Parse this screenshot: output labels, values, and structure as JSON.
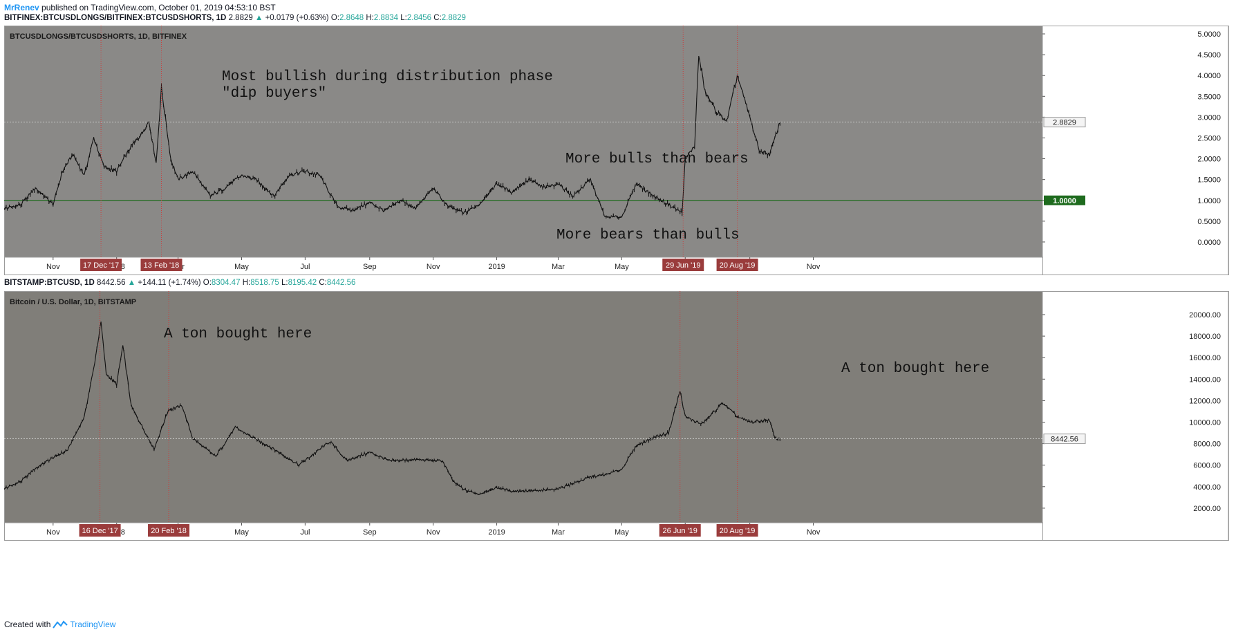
{
  "header": {
    "author": "MrRenev",
    "published_text": "published on TradingView.com, October 01, 2019 04:53:10 BST"
  },
  "footer": {
    "created_with": "Created with",
    "brand": "TradingView"
  },
  "colors": {
    "pane1_bg": "#8a8987",
    "pane2_bg": "#807e79",
    "line": "#000000",
    "marker": "#cf3a3a",
    "date_label_bg": "#9a3c3c",
    "hline": "#1e6b1e",
    "up": "#26a69a"
  },
  "panes": [
    {
      "legend": {
        "symbol": "BITFINEX:BTCUSDLONGS/BITFINEX:BTCUSDSHORTS, 1D",
        "last": "2.8829",
        "change": "+0.0179 (+0.63%)",
        "o": "2.8648",
        "h": "2.8834",
        "l": "2.8456",
        "c": "2.8829"
      },
      "pane_title": "BTCUSDLONGS/BTCUSDSHORTS, 1D, BITFINEX",
      "annotations": [
        "Most bullish during distribution phase\n\"dip buyers\"",
        "More bulls than bears",
        "More bears than bulls"
      ],
      "last_value_label": "2.8829",
      "hline_label": "1.0000",
      "markers": [
        {
          "date": "2017-12-17",
          "label": "17 Dec '17"
        },
        {
          "date": "2018-02-13",
          "label": "13 Feb '18"
        },
        {
          "date": "2019-06-29",
          "label": "29 Jun '19"
        },
        {
          "date": "2019-08-20",
          "label": "20 Aug '19"
        }
      ]
    },
    {
      "legend": {
        "symbol": "BITSTAMP:BTCUSD, 1D",
        "last": "8442.56",
        "change": "+144.11 (+1.74%)",
        "o": "8304.47",
        "h": "8518.75",
        "l": "8195.42",
        "c": "8442.56"
      },
      "pane_title": "Bitcoin / U.S. Dollar, 1D, BITSTAMP",
      "annotations": [
        "A ton bought here",
        "A ton bought here"
      ],
      "last_value_label": "8442.56",
      "markers": [
        {
          "date": "2017-12-16",
          "label": "16 Dec '17"
        },
        {
          "date": "2018-02-20",
          "label": "20 Feb '18"
        },
        {
          "date": "2019-06-26",
          "label": "26 Jun '19"
        },
        {
          "date": "2019-08-20",
          "label": "20 Aug '19"
        }
      ]
    }
  ],
  "chart_data": [
    {
      "type": "line",
      "title": "BTCUSDLONGS/BTCUSDSHORTS, 1D, BITFINEX",
      "x_ticks": [
        "Nov",
        "2018",
        "Mar",
        "May",
        "Jul",
        "Sep",
        "Nov",
        "2019",
        "Mar",
        "May",
        "Jul",
        "Sep",
        "Nov"
      ],
      "y_ticks": [
        "0.0000",
        "0.5000",
        "1.0000",
        "1.5000",
        "2.0000",
        "2.5000",
        "3.0000",
        "3.5000",
        "4.0000",
        "4.5000",
        "5.0000"
      ],
      "ylim": [
        -0.3,
        5.1
      ],
      "hline": 1.0,
      "grid": false,
      "series": [
        {
          "x": [
            "2017-09-15",
            "2017-10-01",
            "2017-10-15",
            "2017-11-01",
            "2017-11-10",
            "2017-11-20",
            "2017-12-01",
            "2017-12-10",
            "2017-12-20",
            "2018-01-01",
            "2018-01-08",
            "2018-01-15",
            "2018-01-25",
            "2018-02-01",
            "2018-02-08",
            "2018-02-13",
            "2018-02-22",
            "2018-03-01",
            "2018-03-15",
            "2018-04-01",
            "2018-04-15",
            "2018-05-01",
            "2018-05-15",
            "2018-06-01",
            "2018-06-15",
            "2018-07-01",
            "2018-07-15",
            "2018-08-01",
            "2018-08-15",
            "2018-09-01",
            "2018-09-15",
            "2018-10-01",
            "2018-10-15",
            "2018-11-01",
            "2018-11-15",
            "2018-12-01",
            "2018-12-15",
            "2019-01-01",
            "2019-01-15",
            "2019-02-01",
            "2019-02-15",
            "2019-03-01",
            "2019-03-15",
            "2019-04-01",
            "2019-04-15",
            "2019-05-01",
            "2019-05-15",
            "2019-06-01",
            "2019-06-15",
            "2019-06-28",
            "2019-07-01",
            "2019-07-10",
            "2019-07-14",
            "2019-07-20",
            "2019-08-01",
            "2019-08-10",
            "2019-08-20",
            "2019-09-01",
            "2019-09-10",
            "2019-09-20",
            "2019-09-30"
          ],
          "y": [
            0.8,
            0.9,
            1.3,
            0.9,
            1.7,
            2.1,
            1.6,
            2.5,
            1.8,
            1.7,
            2.0,
            2.3,
            2.6,
            2.9,
            1.9,
            3.7,
            2.0,
            1.5,
            1.7,
            1.1,
            1.3,
            1.6,
            1.5,
            1.1,
            1.6,
            1.7,
            1.6,
            0.85,
            0.75,
            0.95,
            0.75,
            1.0,
            0.8,
            1.3,
            0.85,
            0.7,
            0.9,
            1.4,
            1.2,
            1.5,
            1.3,
            1.4,
            1.1,
            1.5,
            0.6,
            0.6,
            1.4,
            1.1,
            0.9,
            0.7,
            2.0,
            2.3,
            4.5,
            3.6,
            3.1,
            2.9,
            4.0,
            3.0,
            2.2,
            2.1,
            2.88
          ]
        }
      ]
    },
    {
      "type": "line",
      "title": "Bitcoin / U.S. Dollar, 1D, BITSTAMP",
      "x_ticks": [
        "Nov",
        "2018",
        "Mar",
        "May",
        "Jul",
        "Sep",
        "Nov",
        "2019",
        "Mar",
        "May",
        "Jul",
        "Sep",
        "Nov"
      ],
      "y_ticks": [
        "2000.00",
        "4000.00",
        "6000.00",
        "8000.00",
        "10000.00",
        "12000.00",
        "14000.00",
        "16000.00",
        "18000.00",
        "20000.00"
      ],
      "ylim": [
        900,
        21800
      ],
      "grid": false,
      "series": [
        {
          "x": [
            "2017-09-15",
            "2017-10-01",
            "2017-10-15",
            "2017-11-01",
            "2017-11-15",
            "2017-12-01",
            "2017-12-10",
            "2017-12-17",
            "2017-12-22",
            "2018-01-01",
            "2018-01-07",
            "2018-01-15",
            "2018-02-06",
            "2018-02-20",
            "2018-03-05",
            "2018-03-15",
            "2018-04-06",
            "2018-04-25",
            "2018-05-15",
            "2018-06-01",
            "2018-06-25",
            "2018-07-25",
            "2018-08-10",
            "2018-09-01",
            "2018-09-20",
            "2018-10-15",
            "2018-11-10",
            "2018-11-20",
            "2018-12-01",
            "2018-12-15",
            "2019-01-01",
            "2019-01-15",
            "2019-02-10",
            "2019-03-01",
            "2019-04-01",
            "2019-04-15",
            "2019-05-01",
            "2019-05-15",
            "2019-06-01",
            "2019-06-15",
            "2019-06-26",
            "2019-07-01",
            "2019-07-17",
            "2019-08-06",
            "2019-08-20",
            "2019-09-01",
            "2019-09-20",
            "2019-09-25",
            "2019-09-30"
          ],
          "y": [
            3800,
            4500,
            5700,
            6700,
            7400,
            10500,
            15000,
            19300,
            14500,
            13500,
            17100,
            11500,
            7500,
            11200,
            11500,
            8500,
            6800,
            9500,
            8400,
            7500,
            6000,
            8200,
            6400,
            7200,
            6400,
            6500,
            6400,
            4500,
            3700,
            3300,
            3900,
            3600,
            3600,
            3800,
            4900,
            5100,
            5600,
            7800,
            8600,
            9000,
            12900,
            10500,
            9800,
            11800,
            10500,
            10000,
            10200,
            8500,
            8450
          ]
        }
      ]
    }
  ]
}
